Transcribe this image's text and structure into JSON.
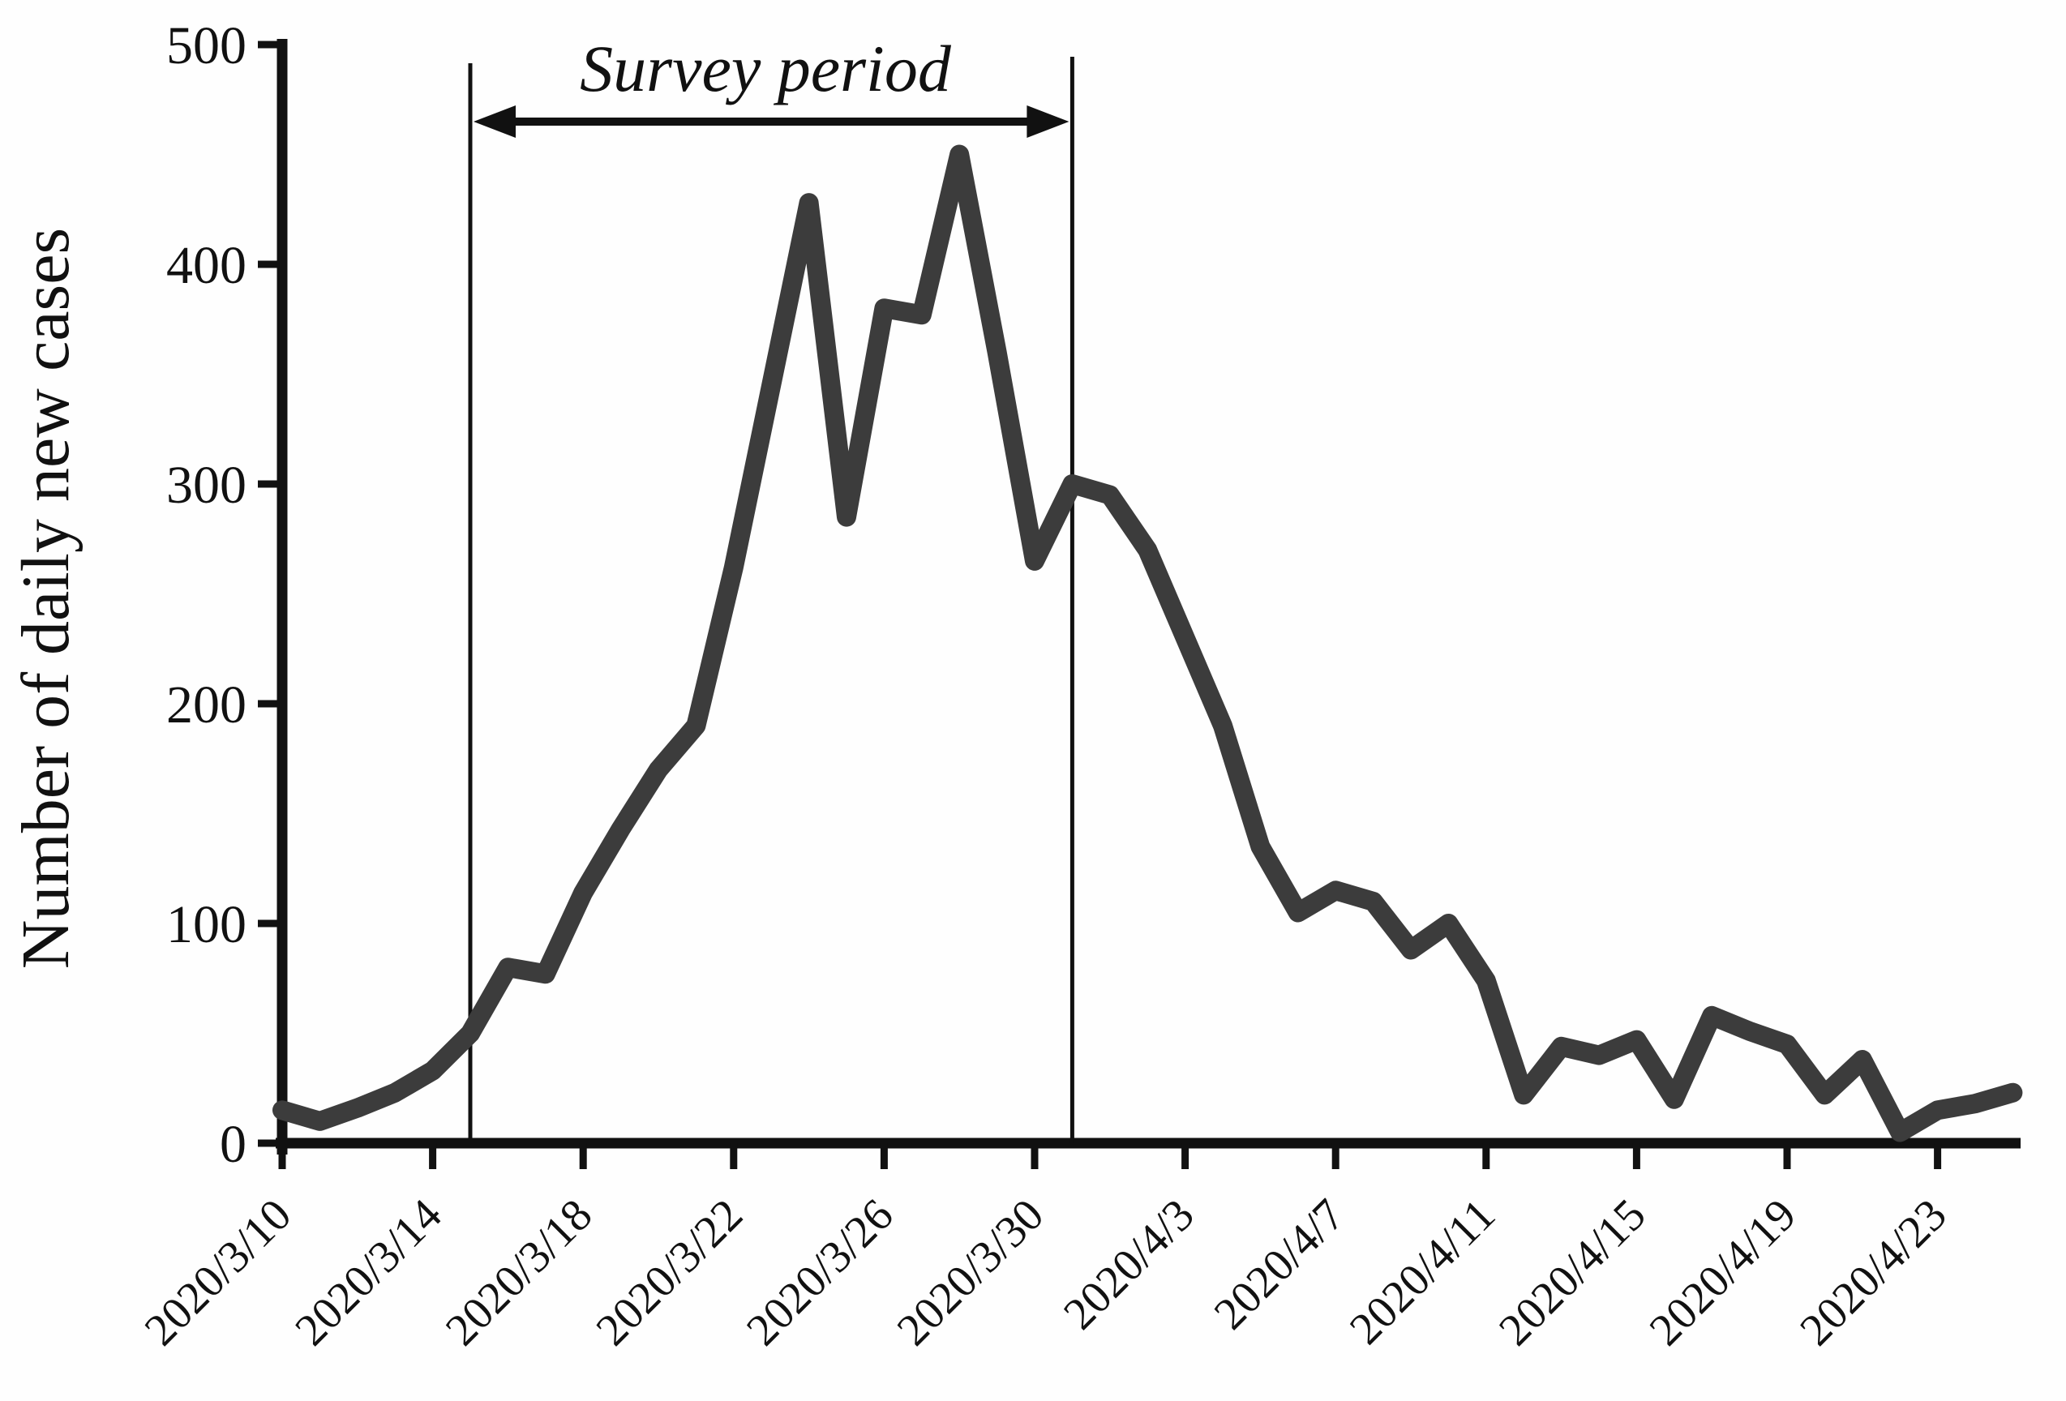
{
  "chart_data": {
    "type": "line",
    "title": "",
    "xlabel": "",
    "ylabel": "Number of daily new cases",
    "ylim": [
      0,
      500
    ],
    "yticks": [
      0,
      100,
      200,
      300,
      400,
      500
    ],
    "grid": false,
    "legend": false,
    "line_color": "#3c3c3c",
    "axis_color": "#111111",
    "x": [
      "2020/3/10",
      "2020/3/11",
      "2020/3/12",
      "2020/3/13",
      "2020/3/14",
      "2020/3/15",
      "2020/3/16",
      "2020/3/17",
      "2020/3/18",
      "2020/3/19",
      "2020/3/20",
      "2020/3/21",
      "2020/3/22",
      "2020/3/23",
      "2020/3/24",
      "2020/3/25",
      "2020/3/26",
      "2020/3/27",
      "2020/3/28",
      "2020/3/29",
      "2020/3/30",
      "2020/3/31",
      "2020/4/1",
      "2020/4/2",
      "2020/4/3",
      "2020/4/4",
      "2020/4/5",
      "2020/4/6",
      "2020/4/7",
      "2020/4/8",
      "2020/4/9",
      "2020/4/10",
      "2020/4/11",
      "2020/4/12",
      "2020/4/13",
      "2020/4/14",
      "2020/4/15",
      "2020/4/16",
      "2020/4/17",
      "2020/4/18",
      "2020/4/19",
      "2020/4/20",
      "2020/4/21",
      "2020/4/22",
      "2020/4/23",
      "2020/4/24",
      "2020/4/25"
    ],
    "xtick_labels": [
      "2020/3/10",
      "2020/3/14",
      "2020/3/18",
      "2020/3/22",
      "2020/3/26",
      "2020/3/30",
      "2020/4/3",
      "2020/4/7",
      "2020/4/11",
      "2020/4/15",
      "2020/4/19",
      "2020/4/23"
    ],
    "series": [
      {
        "name": "Number of daily new cases",
        "values": [
          15,
          10,
          16,
          23,
          33,
          50,
          80,
          77,
          114,
          143,
          170,
          190,
          262,
          345,
          428,
          285,
          380,
          377,
          450,
          360,
          265,
          300,
          295,
          270,
          230,
          190,
          135,
          105,
          115,
          110,
          88,
          100,
          74,
          22,
          44,
          40,
          47,
          20,
          58,
          51,
          45,
          22,
          38,
          5,
          15,
          18,
          23
        ]
      }
    ],
    "annotation": {
      "label": "Survey period",
      "start_date": "2020/3/15",
      "end_date": "2020/3/31"
    }
  }
}
